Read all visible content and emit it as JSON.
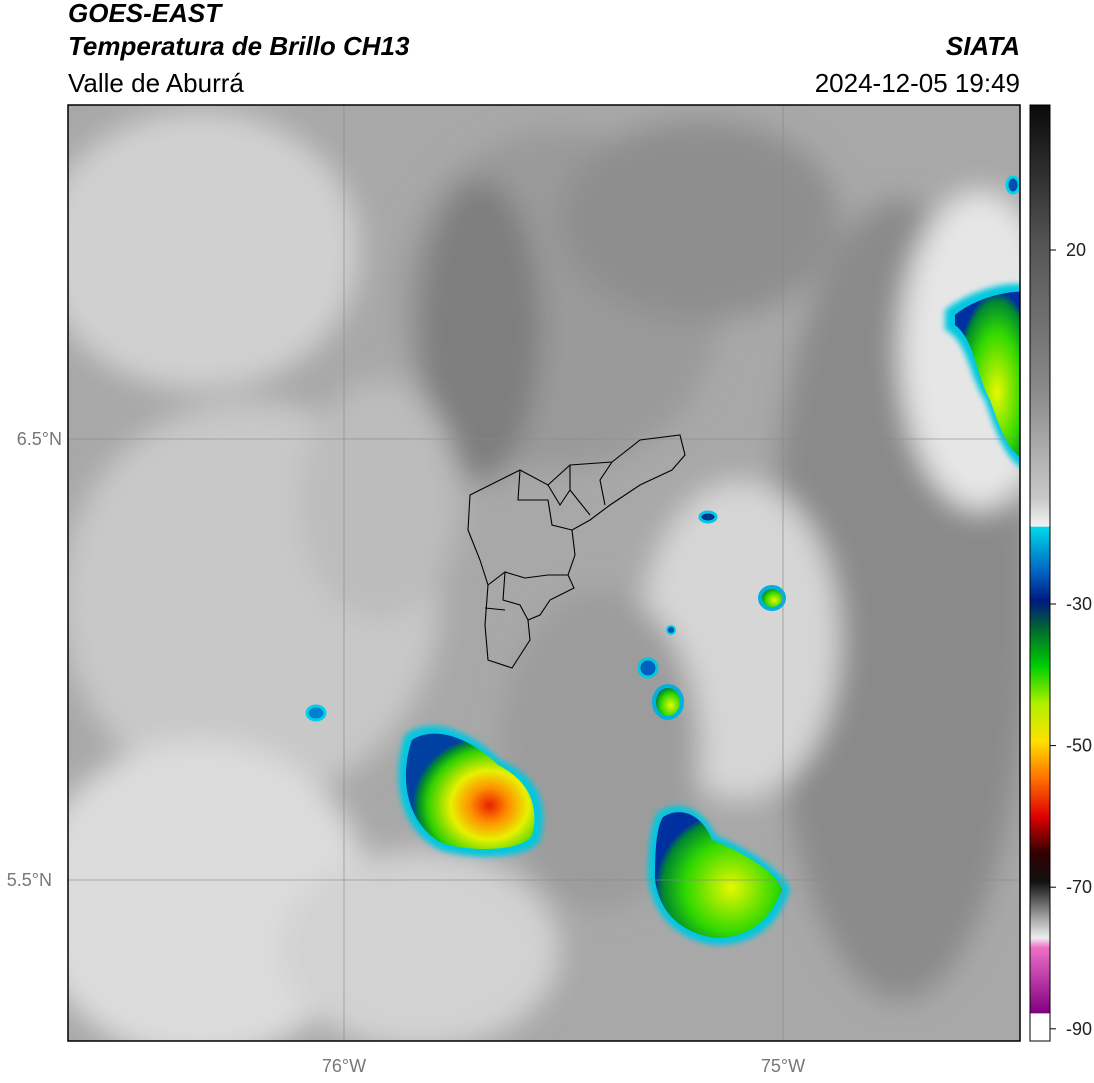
{
  "header": {
    "title": "GOES-EAST",
    "subtitle": "Temperatura de Brillo CH13",
    "region": "Valle de Aburrá",
    "source": "SIATA",
    "datetime": "2024-12-05 19:49"
  },
  "map": {
    "lat_labels": [
      "6.5°N",
      "5.5°N"
    ],
    "lon_labels": [
      "76°W",
      "75°W"
    ]
  },
  "colorbar": {
    "ticks": [
      20,
      -30,
      -50,
      -70,
      -90
    ]
  }
}
